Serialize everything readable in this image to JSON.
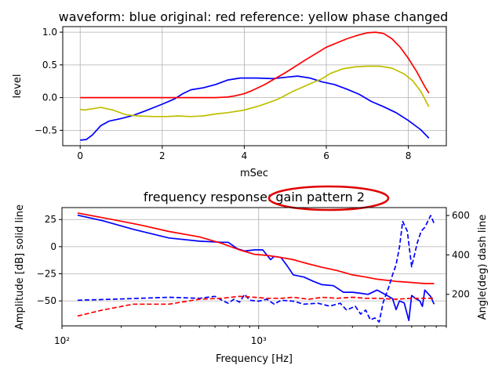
{
  "chart_data": [
    {
      "type": "line",
      "title": "waveform: blue original: red reference: yellow phase changed",
      "xlabel": "mSec",
      "ylabel": "level",
      "xlim": [
        -0.425,
        8.925
      ],
      "ylim": [
        -0.735,
        1.085
      ],
      "xticks": [
        0,
        2,
        4,
        6,
        8
      ],
      "yticks": [
        -0.5,
        0.0,
        0.5,
        1.0
      ],
      "xtick_labels": [
        "0",
        "2",
        "4",
        "6",
        "8"
      ],
      "ytick_labels": [
        "−0.5",
        "0.0",
        "0.5",
        "1.0"
      ],
      "grid": true,
      "series": [
        {
          "color": "#0000ff",
          "x": [
            0,
            0.15,
            0.3,
            0.5,
            0.7,
            1.0,
            1.3,
            1.6,
            2.0,
            2.3,
            2.5,
            2.7,
            3.0,
            3.3,
            3.6,
            3.9,
            4.3,
            4.7,
            5.0,
            5.3,
            5.6,
            5.9,
            6.2,
            6.5,
            6.8,
            7.1,
            7.4,
            7.7,
            8.0,
            8.3,
            8.5
          ],
          "y": [
            -0.65,
            -0.64,
            -0.57,
            -0.43,
            -0.36,
            -0.32,
            -0.27,
            -0.2,
            -0.1,
            -0.02,
            0.06,
            0.12,
            0.15,
            0.2,
            0.27,
            0.3,
            0.3,
            0.29,
            0.31,
            0.33,
            0.3,
            0.24,
            0.2,
            0.13,
            0.05,
            -0.06,
            -0.14,
            -0.23,
            -0.35,
            -0.49,
            -0.62
          ]
        },
        {
          "color": "#ff0000",
          "x": [
            0,
            0.5,
            1.0,
            1.5,
            2.0,
            2.5,
            3.0,
            3.3,
            3.6,
            3.8,
            4.0,
            4.2,
            4.5,
            5.0,
            5.5,
            6.0,
            6.5,
            6.8,
            7.0,
            7.2,
            7.4,
            7.6,
            7.8,
            8.0,
            8.2,
            8.4,
            8.5
          ],
          "y": [
            0,
            0,
            0,
            0,
            0,
            0,
            0,
            0,
            0.01,
            0.03,
            0.06,
            0.11,
            0.2,
            0.38,
            0.58,
            0.77,
            0.9,
            0.96,
            0.99,
            1.0,
            0.98,
            0.9,
            0.77,
            0.6,
            0.4,
            0.17,
            0.07
          ]
        },
        {
          "color": "#bfbf00",
          "x": [
            0,
            0.1,
            0.3,
            0.5,
            0.8,
            1.1,
            1.4,
            1.8,
            2.1,
            2.4,
            2.7,
            3.0,
            3.3,
            3.6,
            4.0,
            4.4,
            4.8,
            5.2,
            5.6,
            5.9,
            6.1,
            6.4,
            6.7,
            7.0,
            7.3,
            7.6,
            7.9,
            8.1,
            8.3,
            8.5
          ],
          "y": [
            -0.18,
            -0.19,
            -0.17,
            -0.15,
            -0.19,
            -0.26,
            -0.28,
            -0.29,
            -0.29,
            -0.28,
            -0.29,
            -0.28,
            -0.25,
            -0.23,
            -0.19,
            -0.12,
            -0.03,
            0.1,
            0.21,
            0.29,
            0.37,
            0.44,
            0.47,
            0.48,
            0.48,
            0.45,
            0.36,
            0.26,
            0.1,
            -0.14
          ]
        }
      ]
    },
    {
      "type": "line",
      "title": "frequency response: gain pattern  2",
      "xlabel": "Frequency [Hz]",
      "ylabel": "Amplitude [dB] solid line",
      "y2label": "Angle(deg) dash line",
      "xscale": "log",
      "xlim": [
        100,
        9000
      ],
      "ylim": [
        -73,
        36
      ],
      "y2lim": [
        40,
        640
      ],
      "xtick_labels": [
        "10²",
        "10³"
      ],
      "yticks": [
        -50,
        -25,
        0,
        25
      ],
      "ytick_labels": [
        "−50",
        "−25",
        "0",
        "25"
      ],
      "y2ticks": [
        200,
        400,
        600
      ],
      "y2tick_labels": [
        "200",
        "400",
        "600"
      ],
      "grid": true,
      "annotation": "red ellipse around gain pattern  2",
      "series": [
        {
          "color": "#0000ff",
          "style": "solid",
          "axis": "left",
          "x": [
            120,
            160,
            230,
            350,
            500,
            650,
            700,
            780,
            850,
            950,
            1050,
            1150,
            1200,
            1300,
            1400,
            1500,
            1700,
            1900,
            2100,
            2400,
            2700,
            3000,
            3300,
            3600,
            4000,
            4200,
            4500,
            4800,
            5000,
            5200,
            5500,
            5800,
            6000,
            6300,
            6600,
            6800,
            7000,
            7500,
            7800
          ],
          "y": [
            29,
            24,
            16,
            8,
            5,
            4,
            4,
            -2,
            -4,
            -3,
            -3,
            -12,
            -9,
            -10,
            -18,
            -26,
            -28,
            -32,
            -35,
            -36,
            -42,
            -42,
            -43,
            -44,
            -40,
            -42,
            -45,
            -48,
            -58,
            -50,
            -52,
            -68,
            -45,
            -48,
            -50,
            -55,
            -40,
            -46,
            -53
          ]
        },
        {
          "color": "#ff0000",
          "style": "solid",
          "axis": "left",
          "x": [
            120,
            180,
            250,
            350,
            500,
            650,
            800,
            950,
            1100,
            1300,
            1500,
            1800,
            2100,
            2500,
            3000,
            3500,
            4000,
            5000,
            6000,
            7000,
            7800
          ],
          "y": [
            31,
            25,
            20,
            14,
            9,
            3,
            -3,
            -7,
            -8,
            -10,
            -12,
            -16,
            -19,
            -22,
            -26,
            -28,
            -30,
            -32,
            -33,
            -34,
            -34
          ]
        },
        {
          "color": "#0000ff",
          "style": "dashed",
          "axis": "right",
          "x": [
            120,
            180,
            250,
            350,
            500,
            600,
            650,
            700,
            750,
            800,
            850,
            900,
            1000,
            1100,
            1200,
            1300,
            1500,
            1700,
            2000,
            2300,
            2600,
            2800,
            3100,
            3300,
            3500,
            3700,
            3900,
            4100,
            4300,
            4600,
            4800,
            5000,
            5200,
            5400,
            5700,
            6000,
            6200,
            6400,
            6700,
            7000,
            7500,
            7800
          ],
          "y": [
            170,
            175,
            180,
            185,
            180,
            190,
            170,
            155,
            175,
            160,
            200,
            170,
            165,
            175,
            150,
            170,
            165,
            150,
            155,
            140,
            155,
            120,
            140,
            100,
            120,
            70,
            80,
            60,
            160,
            240,
            300,
            350,
            440,
            570,
            520,
            340,
            400,
            460,
            520,
            540,
            600,
            560
          ]
        },
        {
          "color": "#ff0000",
          "style": "dashed",
          "axis": "right",
          "x": [
            120,
            160,
            230,
            350,
            500,
            650,
            800,
            950,
            1100,
            1300,
            1500,
            1800,
            2100,
            2500,
            3000,
            3500,
            4000,
            5000,
            6000,
            7000,
            7800
          ],
          "y": [
            90,
            120,
            150,
            150,
            175,
            180,
            190,
            185,
            180,
            180,
            185,
            175,
            185,
            180,
            185,
            180,
            180,
            175,
            180,
            180,
            180
          ]
        }
      ]
    }
  ]
}
